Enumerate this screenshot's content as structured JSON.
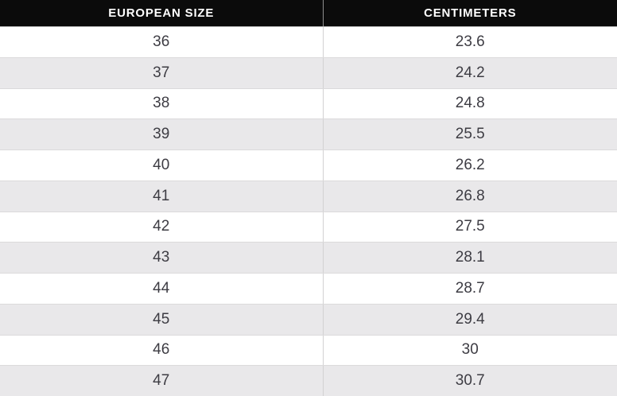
{
  "table": {
    "headers": [
      {
        "label": "EUROPEAN SIZE"
      },
      {
        "label": "CENTIMETERS"
      }
    ],
    "rows": [
      {
        "size": "36",
        "cm": "23.6"
      },
      {
        "size": "37",
        "cm": "24.2"
      },
      {
        "size": "38",
        "cm": "24.8"
      },
      {
        "size": "39",
        "cm": "25.5"
      },
      {
        "size": "40",
        "cm": "26.2"
      },
      {
        "size": "41",
        "cm": "26.8"
      },
      {
        "size": "42",
        "cm": "27.5"
      },
      {
        "size": "43",
        "cm": "28.1"
      },
      {
        "size": "44",
        "cm": "28.7"
      },
      {
        "size": "45",
        "cm": "29.4"
      },
      {
        "size": "46",
        "cm": "30"
      },
      {
        "size": "47",
        "cm": "30.7"
      }
    ]
  },
  "chart_data": {
    "type": "table",
    "columns": [
      "EUROPEAN SIZE",
      "CENTIMETERS"
    ],
    "rows": [
      [
        36,
        23.6
      ],
      [
        37,
        24.2
      ],
      [
        38,
        24.8
      ],
      [
        39,
        25.5
      ],
      [
        40,
        26.2
      ],
      [
        41,
        26.8
      ],
      [
        42,
        27.5
      ],
      [
        43,
        28.1
      ],
      [
        44,
        28.7
      ],
      [
        45,
        29.4
      ],
      [
        46,
        30
      ],
      [
        47,
        30.7
      ]
    ]
  },
  "colors": {
    "header_bg": "#0b0b0b",
    "header_text": "#ffffff",
    "row_alt_bg": "#e9e8ea",
    "row_bg": "#ffffff",
    "cell_text": "#3d3c43",
    "divider": "#d2d1d2"
  }
}
